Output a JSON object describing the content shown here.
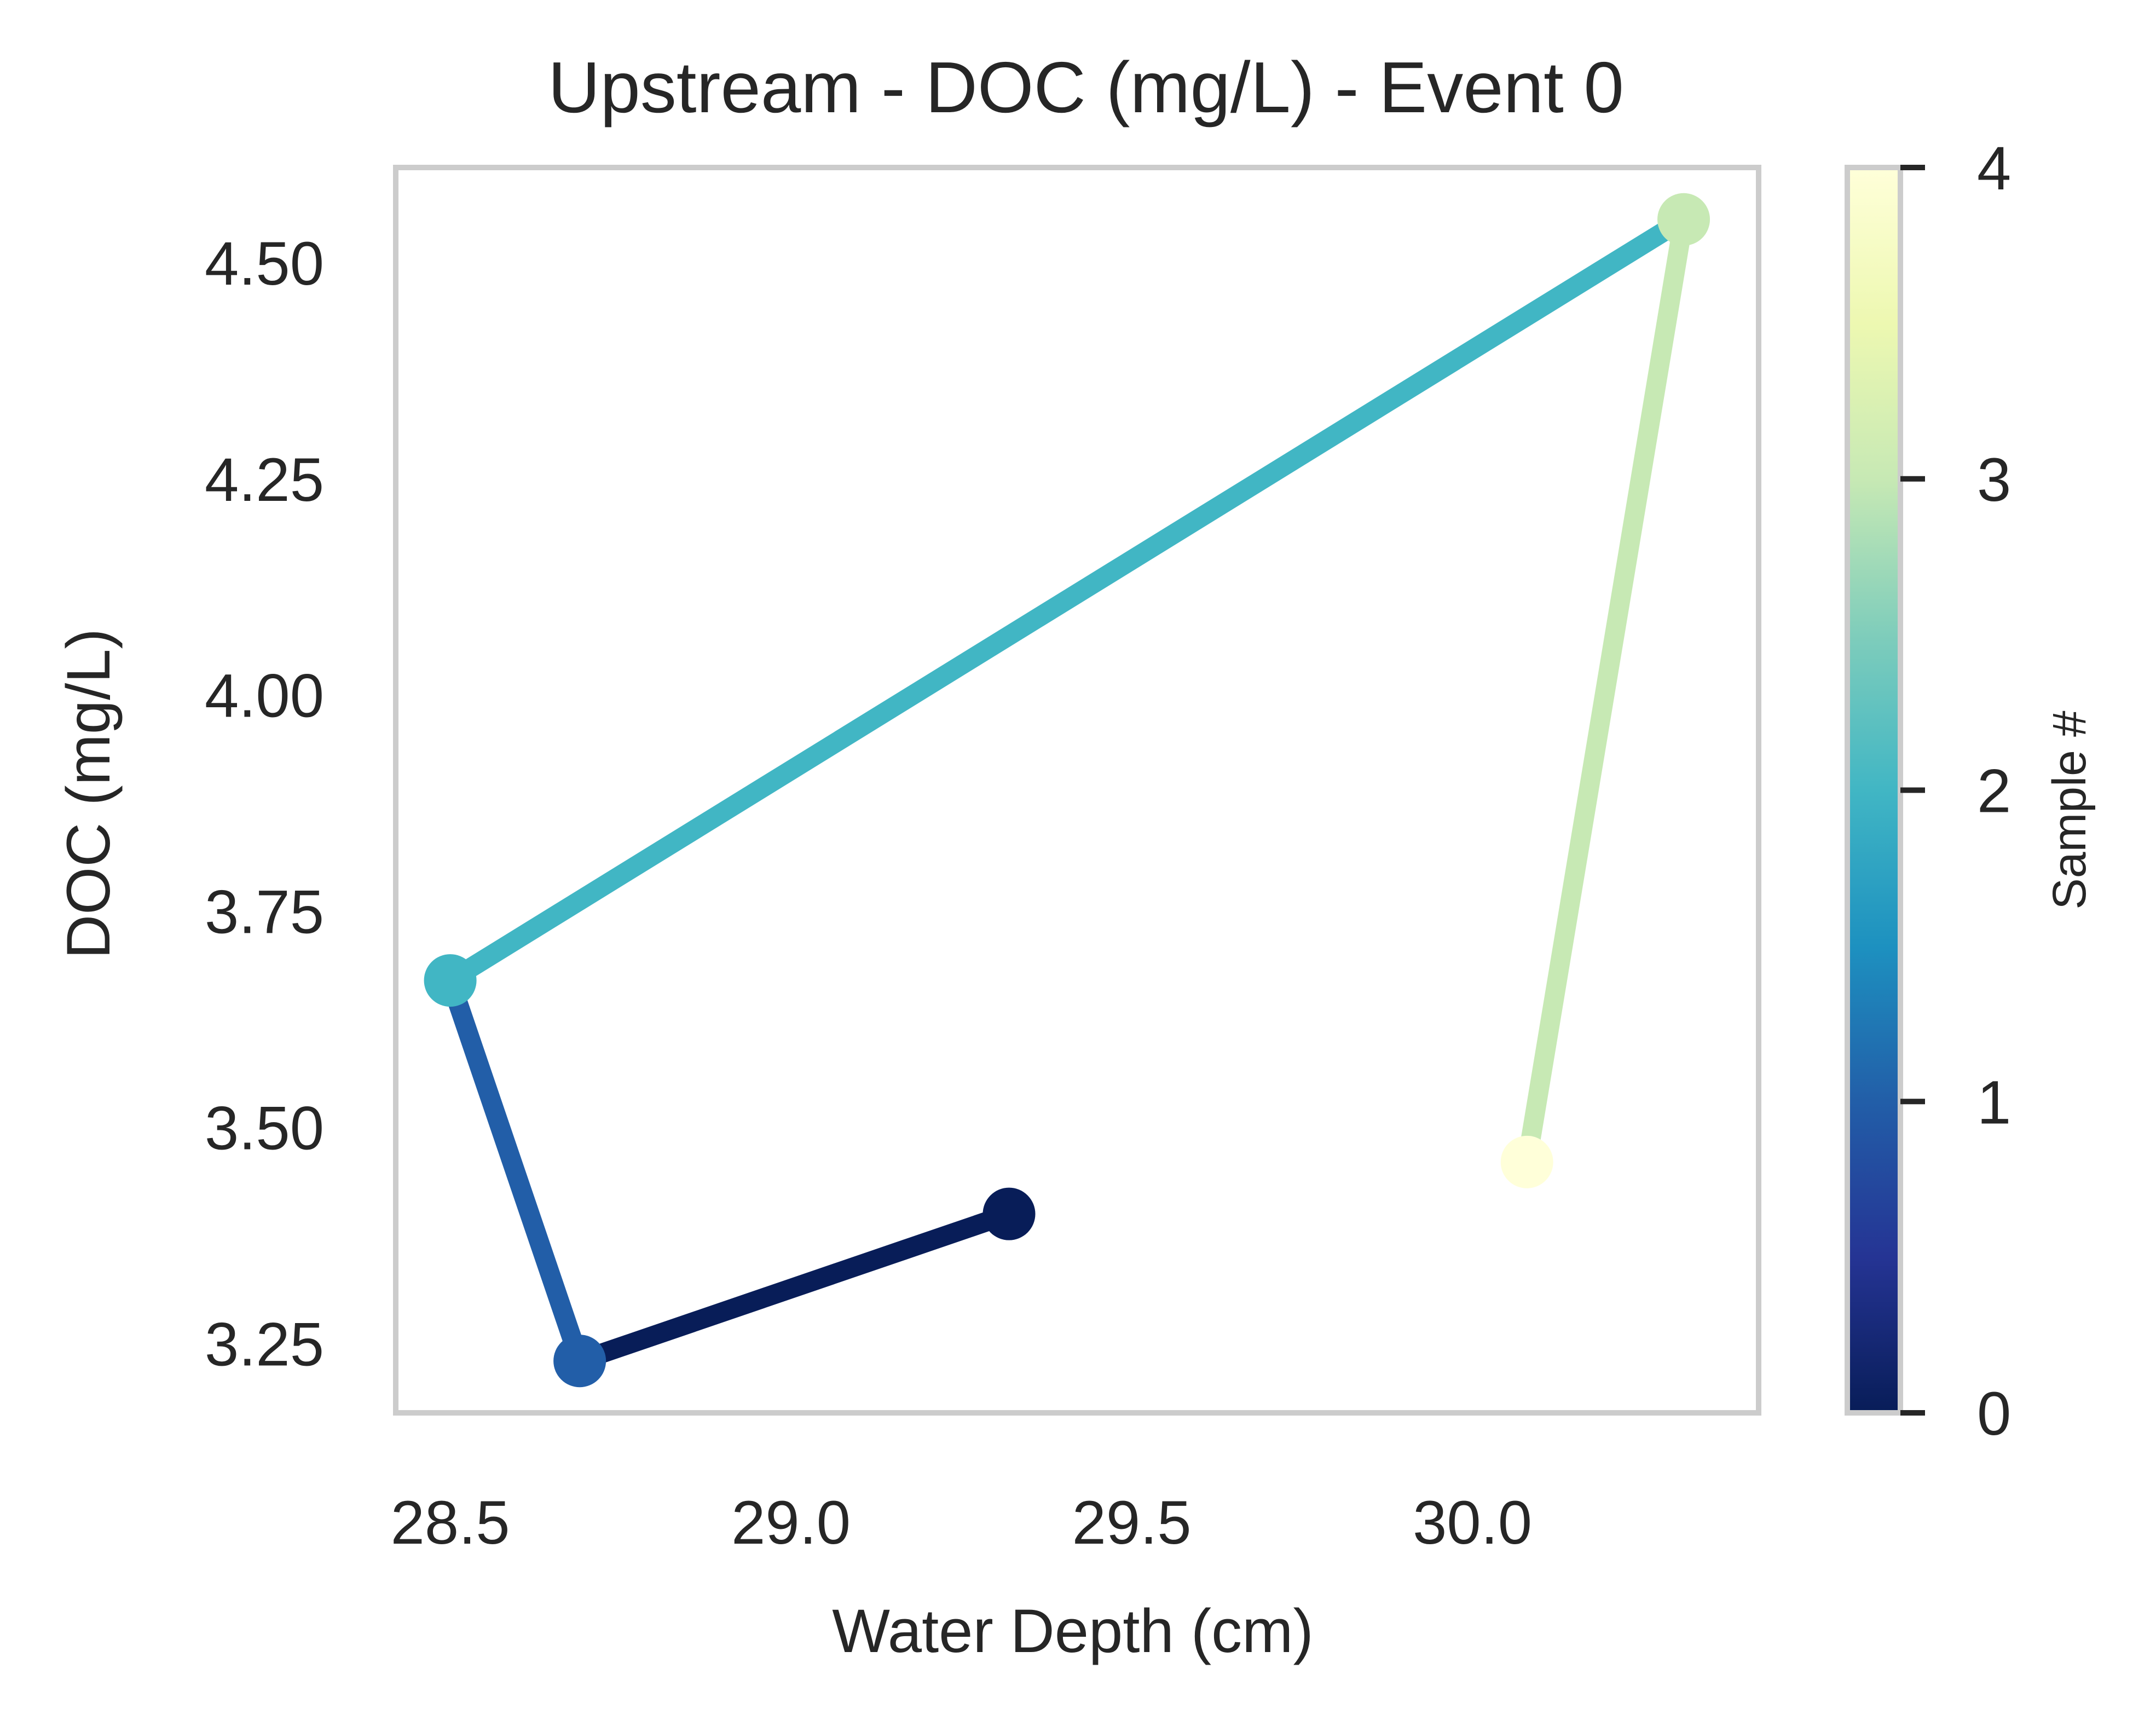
{
  "chart_data": {
    "type": "line",
    "title": "Upstream - DOC (mg/L) - Event 0",
    "xlabel": "Water Depth (cm)",
    "ylabel": "DOC (mg/L)",
    "xlim": [
      28.42,
      30.42
    ],
    "ylim": [
      3.17,
      4.61
    ],
    "x_ticks": [
      28.5,
      29.0,
      29.5,
      30.0
    ],
    "x_tick_labels": [
      "28.5",
      "29.0",
      "29.5",
      "30.0"
    ],
    "y_ticks": [
      3.25,
      3.5,
      3.75,
      4.0,
      4.25,
      4.5
    ],
    "y_tick_labels": [
      "3.25",
      "3.50",
      "3.75",
      "4.00",
      "4.25",
      "4.50"
    ],
    "grid": false,
    "colormap": "YlGnBu_r",
    "points": [
      {
        "sample": 0,
        "x": 29.32,
        "y": 3.4,
        "color": "#081d58"
      },
      {
        "sample": 1,
        "x": 28.69,
        "y": 3.23,
        "color": "#225ea8"
      },
      {
        "sample": 2,
        "x": 28.5,
        "y": 3.67,
        "color": "#41b6c4"
      },
      {
        "sample": 3,
        "x": 30.31,
        "y": 4.55,
        "color": "#c7e9b4"
      },
      {
        "sample": 4,
        "x": 30.08,
        "y": 3.46,
        "color": "#ffffd9"
      }
    ],
    "colorbar": {
      "label": "Sample #",
      "range": [
        0,
        4
      ],
      "ticks": [
        0,
        1,
        2,
        3,
        4
      ],
      "tick_labels": [
        "0",
        "1",
        "2",
        "3",
        "4"
      ],
      "gradient_stops": [
        "#081d58",
        "#253494",
        "#225ea8",
        "#1d91c0",
        "#41b6c4",
        "#7fcdbb",
        "#c7e9b4",
        "#edf8b1",
        "#ffffd9"
      ]
    },
    "colors": {
      "frame": "#cccccc",
      "text": "#262626"
    }
  }
}
